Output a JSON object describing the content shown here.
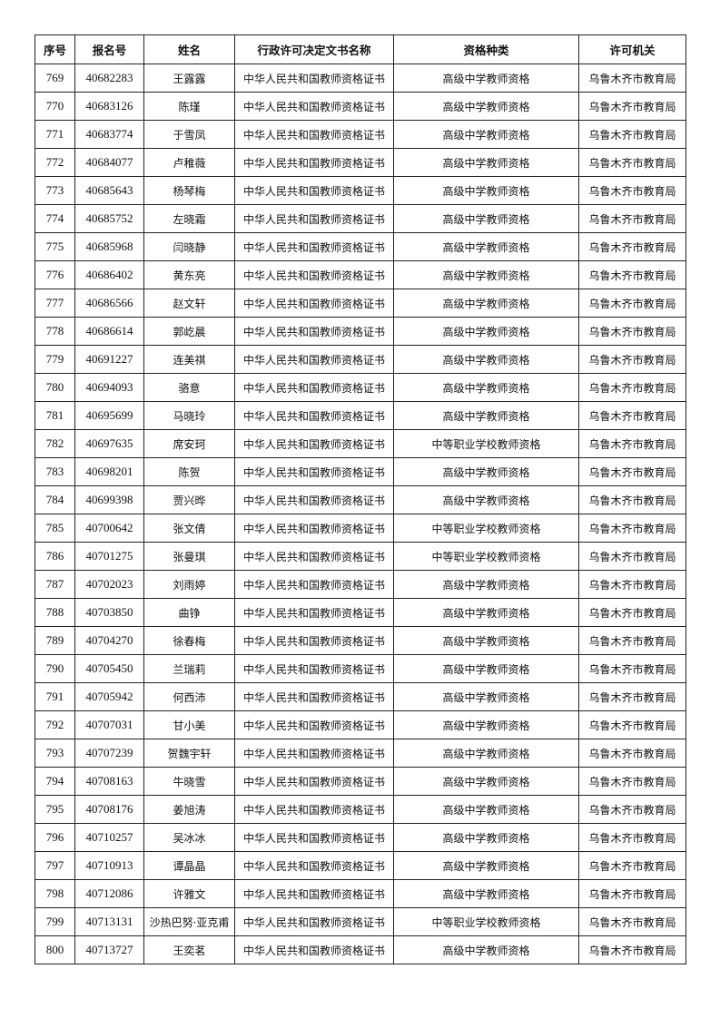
{
  "table": {
    "headers": [
      "序号",
      "报名号",
      "姓名",
      "行政许可决定文书名称",
      "资格种类",
      "许可机关"
    ],
    "rows": [
      [
        "769",
        "40682283",
        "王露露",
        "中华人民共和国教师资格证书",
        "高级中学教师资格",
        "乌鲁木齐市教育局"
      ],
      [
        "770",
        "40683126",
        "陈瑾",
        "中华人民共和国教师资格证书",
        "高级中学教师资格",
        "乌鲁木齐市教育局"
      ],
      [
        "771",
        "40683774",
        "于雪凤",
        "中华人民共和国教师资格证书",
        "高级中学教师资格",
        "乌鲁木齐市教育局"
      ],
      [
        "772",
        "40684077",
        "卢稚薇",
        "中华人民共和国教师资格证书",
        "高级中学教师资格",
        "乌鲁木齐市教育局"
      ],
      [
        "773",
        "40685643",
        "杨琴梅",
        "中华人民共和国教师资格证书",
        "高级中学教师资格",
        "乌鲁木齐市教育局"
      ],
      [
        "774",
        "40685752",
        "左晓霜",
        "中华人民共和国教师资格证书",
        "高级中学教师资格",
        "乌鲁木齐市教育局"
      ],
      [
        "775",
        "40685968",
        "闫晓静",
        "中华人民共和国教师资格证书",
        "高级中学教师资格",
        "乌鲁木齐市教育局"
      ],
      [
        "776",
        "40686402",
        "黄东亮",
        "中华人民共和国教师资格证书",
        "高级中学教师资格",
        "乌鲁木齐市教育局"
      ],
      [
        "777",
        "40686566",
        "赵文轩",
        "中华人民共和国教师资格证书",
        "高级中学教师资格",
        "乌鲁木齐市教育局"
      ],
      [
        "778",
        "40686614",
        "郭屹晨",
        "中华人民共和国教师资格证书",
        "高级中学教师资格",
        "乌鲁木齐市教育局"
      ],
      [
        "779",
        "40691227",
        "连美祺",
        "中华人民共和国教师资格证书",
        "高级中学教师资格",
        "乌鲁木齐市教育局"
      ],
      [
        "780",
        "40694093",
        "骆意",
        "中华人民共和国教师资格证书",
        "高级中学教师资格",
        "乌鲁木齐市教育局"
      ],
      [
        "781",
        "40695699",
        "马晓玲",
        "中华人民共和国教师资格证书",
        "高级中学教师资格",
        "乌鲁木齐市教育局"
      ],
      [
        "782",
        "40697635",
        "席安珂",
        "中华人民共和国教师资格证书",
        "中等职业学校教师资格",
        "乌鲁木齐市教育局"
      ],
      [
        "783",
        "40698201",
        "陈贺",
        "中华人民共和国教师资格证书",
        "高级中学教师资格",
        "乌鲁木齐市教育局"
      ],
      [
        "784",
        "40699398",
        "贾兴晔",
        "中华人民共和国教师资格证书",
        "高级中学教师资格",
        "乌鲁木齐市教育局"
      ],
      [
        "785",
        "40700642",
        "张文倩",
        "中华人民共和国教师资格证书",
        "中等职业学校教师资格",
        "乌鲁木齐市教育局"
      ],
      [
        "786",
        "40701275",
        "张曼琪",
        "中华人民共和国教师资格证书",
        "中等职业学校教师资格",
        "乌鲁木齐市教育局"
      ],
      [
        "787",
        "40702023",
        "刘雨婷",
        "中华人民共和国教师资格证书",
        "高级中学教师资格",
        "乌鲁木齐市教育局"
      ],
      [
        "788",
        "40703850",
        "曲铮",
        "中华人民共和国教师资格证书",
        "高级中学教师资格",
        "乌鲁木齐市教育局"
      ],
      [
        "789",
        "40704270",
        "徐春梅",
        "中华人民共和国教师资格证书",
        "高级中学教师资格",
        "乌鲁木齐市教育局"
      ],
      [
        "790",
        "40705450",
        "兰瑞莉",
        "中华人民共和国教师资格证书",
        "高级中学教师资格",
        "乌鲁木齐市教育局"
      ],
      [
        "791",
        "40705942",
        "何西沛",
        "中华人民共和国教师资格证书",
        "高级中学教师资格",
        "乌鲁木齐市教育局"
      ],
      [
        "792",
        "40707031",
        "甘小美",
        "中华人民共和国教师资格证书",
        "高级中学教师资格",
        "乌鲁木齐市教育局"
      ],
      [
        "793",
        "40707239",
        "贺魏宇轩",
        "中华人民共和国教师资格证书",
        "高级中学教师资格",
        "乌鲁木齐市教育局"
      ],
      [
        "794",
        "40708163",
        "牛晓雪",
        "中华人民共和国教师资格证书",
        "高级中学教师资格",
        "乌鲁木齐市教育局"
      ],
      [
        "795",
        "40708176",
        "姜旭涛",
        "中华人民共和国教师资格证书",
        "高级中学教师资格",
        "乌鲁木齐市教育局"
      ],
      [
        "796",
        "40710257",
        "吴冰冰",
        "中华人民共和国教师资格证书",
        "高级中学教师资格",
        "乌鲁木齐市教育局"
      ],
      [
        "797",
        "40710913",
        "谭晶晶",
        "中华人民共和国教师资格证书",
        "高级中学教师资格",
        "乌鲁木齐市教育局"
      ],
      [
        "798",
        "40712086",
        "许雅文",
        "中华人民共和国教师资格证书",
        "高级中学教师资格",
        "乌鲁木齐市教育局"
      ],
      [
        "799",
        "40713131",
        "沙热巴努·亚克甫",
        "中华人民共和国教师资格证书",
        "中等职业学校教师资格",
        "乌鲁木齐市教育局"
      ],
      [
        "800",
        "40713727",
        "王奕茗",
        "中华人民共和国教师资格证书",
        "高级中学教师资格",
        "乌鲁木齐市教育局"
      ]
    ]
  }
}
